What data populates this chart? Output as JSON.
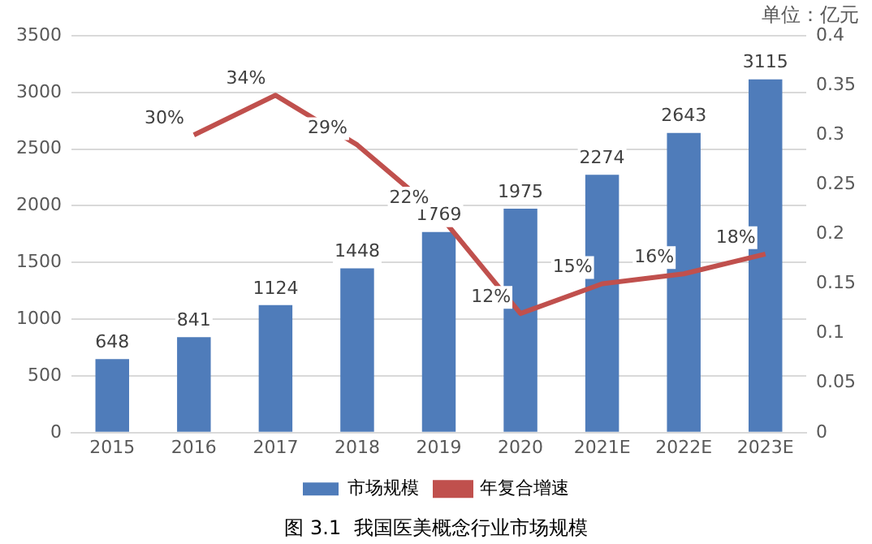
{
  "chart_data": {
    "type": "bar",
    "title": "图 3.1  我国医美概念行业市场规模",
    "annotations": [
      "单位：亿元"
    ],
    "categories": [
      "2015",
      "2016",
      "2017",
      "2018",
      "2019",
      "2020",
      "2021E",
      "2022E",
      "2023E"
    ],
    "series": [
      {
        "name": "市场规模",
        "color": "#4f7cba",
        "values": [
          648,
          841,
          1124,
          1448,
          1769,
          1975,
          2274,
          2643,
          3115
        ],
        "value_labels": [
          "648",
          "841",
          "1124",
          "1448",
          "1769",
          "1975",
          "2274",
          "2643",
          "3115"
        ]
      },
      {
        "name": "年复合增速",
        "type": "line",
        "axis": "y2",
        "color": "#c0504d",
        "values": [
          null,
          0.3,
          0.34,
          0.29,
          0.22,
          0.12,
          0.15,
          0.16,
          0.18
        ],
        "value_labels": [
          null,
          "30%",
          "34%",
          "29%",
          "22%",
          "12%",
          "15%",
          "16%",
          "18%"
        ]
      }
    ],
    "ylim": [
      0,
      3500
    ],
    "yticks": [
      0,
      500,
      1000,
      1500,
      2000,
      2500,
      3000,
      3500
    ],
    "y2lim": [
      0,
      0.4
    ],
    "y2ticks": [
      0,
      0.05,
      0.1,
      0.15,
      0.2,
      0.25,
      0.3,
      0.35,
      0.4
    ],
    "grid": "y",
    "legend": "bottom",
    "marker": "none",
    "line_style": "solid"
  }
}
